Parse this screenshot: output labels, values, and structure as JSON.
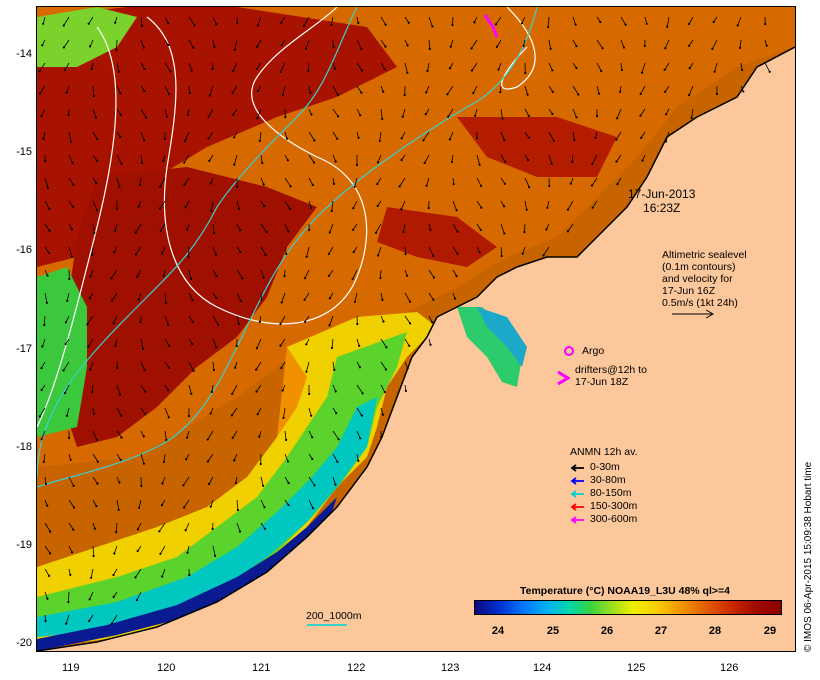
{
  "map": {
    "timestamp_date": "17-Jun-2013",
    "timestamp_time": "16:23Z",
    "x_ticks": [
      "119",
      "120",
      "121",
      "122",
      "123",
      "124",
      "125",
      "126"
    ],
    "y_ticks": [
      "-14",
      "-15",
      "-16",
      "-17",
      "-18",
      "-19",
      "-20"
    ],
    "altimetry": {
      "line1": "Altimetric sealevel",
      "line2": "(0.1m contours)",
      "line3": "and velocity for",
      "line4": "17-Jun 16Z",
      "line5": "0.5m/s (1kt 24h)"
    },
    "argo_label": "Argo",
    "drifters_line1": "drifters@12h to",
    "drifters_line2": "17-Jun 18Z",
    "anmn": {
      "title": "ANMN 12h av.",
      "items": [
        {
          "label": "0-30m",
          "color": "#000000"
        },
        {
          "label": "30-80m",
          "color": "#0000ff"
        },
        {
          "label": "80-150m",
          "color": "#00d0d0"
        },
        {
          "label": "150-300m",
          "color": "#ff0000"
        },
        {
          "label": "300-600m",
          "color": "#ff00ff"
        }
      ]
    },
    "colorbar": {
      "title": "Temperature (°C) NOAA19_L3U 48% ql>=4",
      "ticks": [
        "24",
        "25",
        "26",
        "27",
        "28",
        "29"
      ]
    },
    "scale_label": "200_1000m",
    "credit": "© IMOS 06-Apr-2015 15:09:38 Hobart time",
    "colors": {
      "land": "#fbc79b",
      "sst_warm": "#a00a00",
      "sst_mid": "#e06a00",
      "sst_cool": "#3cd23c",
      "sst_cold": "#0a0a82",
      "contour_sealevel": "#ffffff",
      "isobath": "#3ad0d0"
    }
  }
}
